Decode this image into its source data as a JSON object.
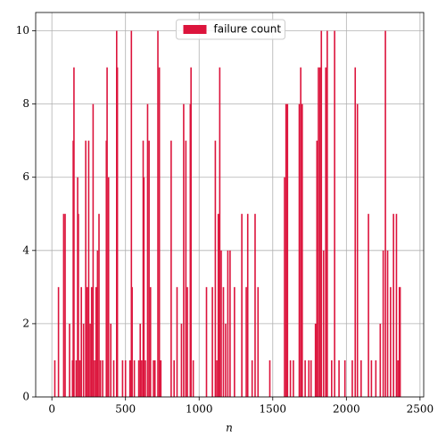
{
  "chart_data": {
    "type": "bar",
    "x_label": "n",
    "x": [
      20,
      45,
      80,
      90,
      120,
      140,
      145,
      150,
      165,
      175,
      180,
      190,
      200,
      215,
      230,
      240,
      250,
      260,
      270,
      280,
      290,
      300,
      310,
      320,
      330,
      345,
      370,
      375,
      385,
      400,
      420,
      440,
      445,
      480,
      500,
      530,
      540,
      545,
      560,
      590,
      600,
      610,
      620,
      625,
      635,
      650,
      660,
      670,
      690,
      700,
      720,
      730,
      740,
      810,
      830,
      850,
      880,
      895,
      910,
      920,
      940,
      945,
      960,
      1050,
      1090,
      1110,
      1120,
      1130,
      1140,
      1150,
      1165,
      1180,
      1195,
      1210,
      1240,
      1290,
      1320,
      1330,
      1360,
      1380,
      1400,
      1480,
      1580,
      1590,
      1600,
      1620,
      1640,
      1680,
      1690,
      1700,
      1720,
      1745,
      1760,
      1790,
      1800,
      1810,
      1820,
      1830,
      1845,
      1860,
      1870,
      1900,
      1920,
      1950,
      1990,
      2040,
      2060,
      2075,
      2100,
      2150,
      2170,
      2200,
      2230,
      2250,
      2265,
      2280,
      2300,
      2320,
      2340,
      2350,
      2360,
      2365
    ],
    "series": [
      {
        "name": "failure count",
        "color": "#dc143c",
        "values": [
          1,
          3,
          5,
          5,
          2,
          1,
          7,
          9,
          1,
          6,
          5,
          1,
          3,
          2,
          7,
          3,
          7,
          2,
          3,
          8,
          1,
          3,
          4,
          5,
          1,
          1,
          7,
          9,
          6,
          2,
          1,
          10,
          9,
          1,
          1,
          1,
          10,
          3,
          1,
          1,
          2,
          1,
          7,
          6,
          1,
          8,
          7,
          3,
          1,
          1,
          10,
          9,
          1,
          7,
          1,
          3,
          2,
          8,
          7,
          3,
          8,
          9,
          1,
          3,
          3,
          7,
          1,
          5,
          9,
          4,
          3,
          2,
          4,
          4,
          3,
          5,
          3,
          5,
          1,
          5,
          3,
          1,
          6,
          8,
          8,
          1,
          1,
          8,
          9,
          8,
          1,
          1,
          1,
          2,
          7,
          9,
          9,
          10,
          4,
          9,
          10,
          1,
          10,
          1,
          1,
          1,
          9,
          8,
          1,
          5,
          1,
          1,
          2,
          4,
          10,
          4,
          3,
          5,
          5,
          1,
          3,
          3
        ]
      }
    ],
    "xlim": [
      -110,
      2525
    ],
    "xticks": [
      0,
      500,
      1000,
      1500,
      2000,
      2500
    ],
    "ylim": [
      0,
      10.5
    ],
    "yticks": [
      0,
      2,
      4,
      6,
      8,
      10
    ],
    "grid": true,
    "legend": "upper center"
  }
}
